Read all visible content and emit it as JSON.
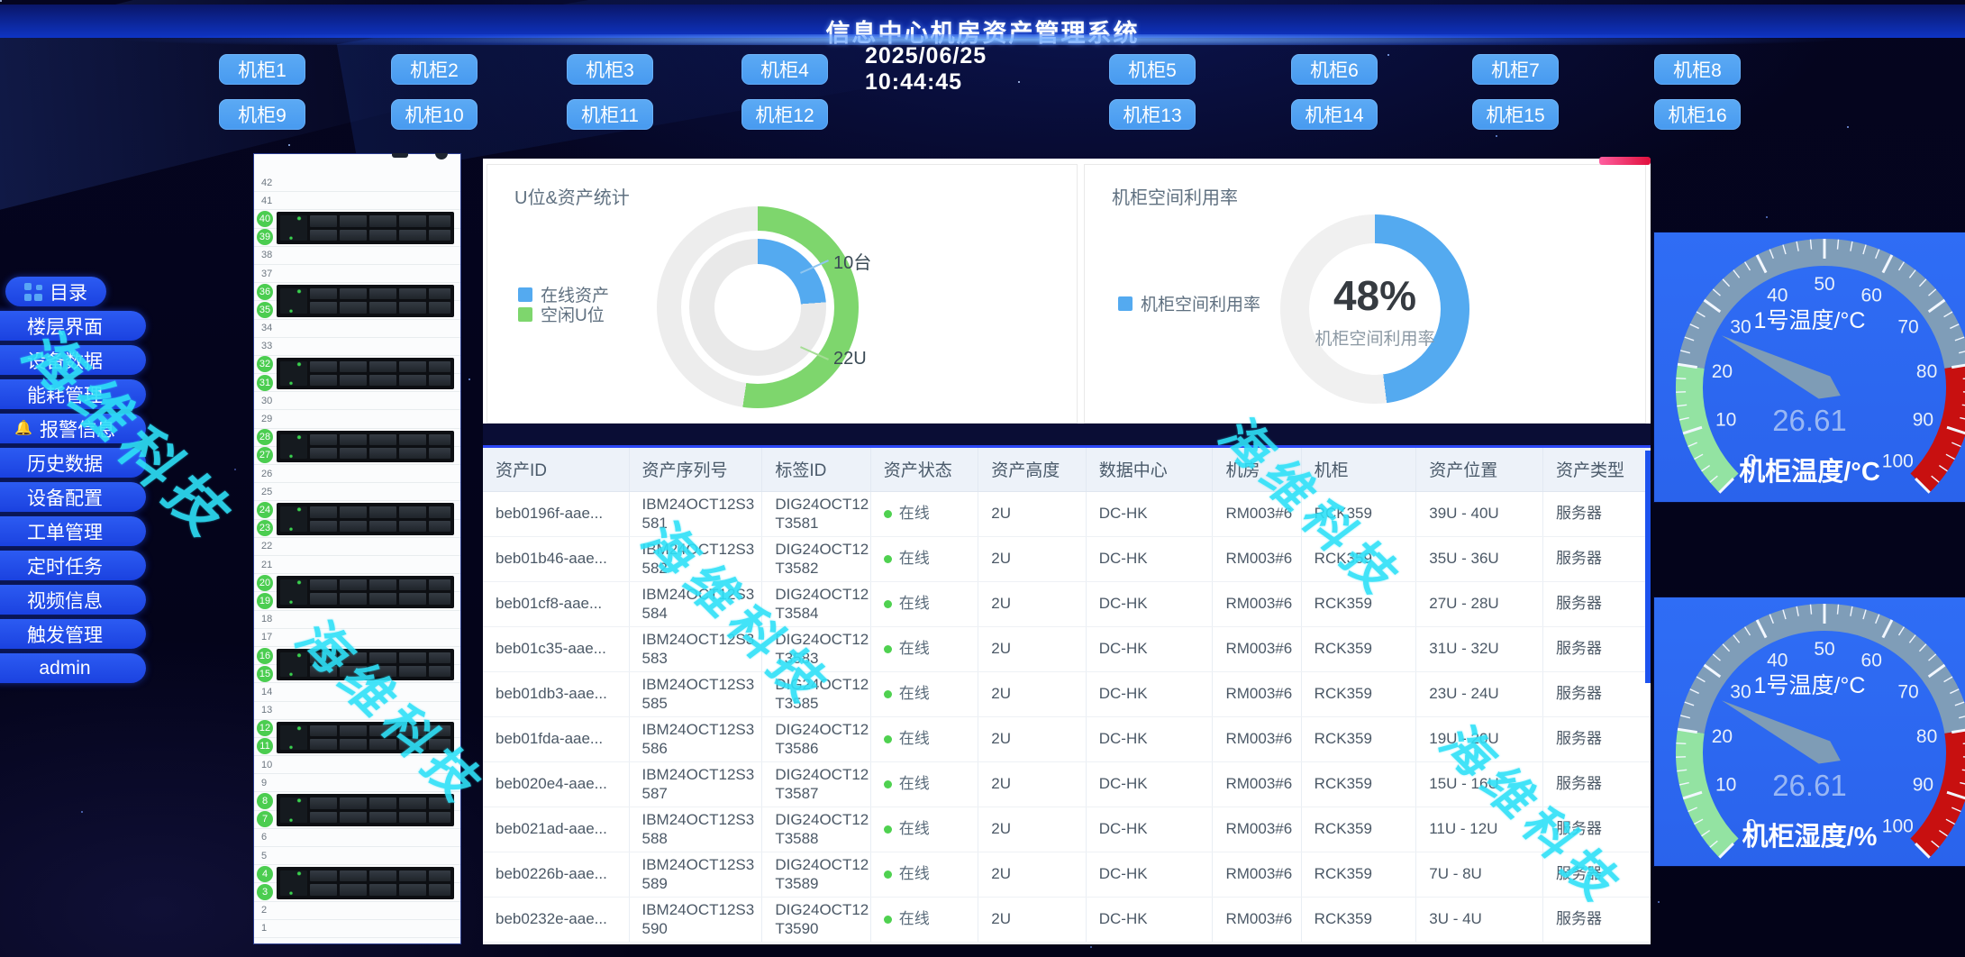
{
  "app": {
    "title": "信息中心机房资产管理系统",
    "datetime": "2025/06/25 10:44:45",
    "watermark": "海维科技"
  },
  "cabinets": {
    "row1": [
      "机柜1",
      "机柜2",
      "机柜3",
      "机柜4",
      "机柜5",
      "机柜6",
      "机柜7",
      "机柜8"
    ],
    "row2": [
      "机柜9",
      "机柜10",
      "机柜11",
      "机柜12",
      "机柜13",
      "机柜14",
      "机柜15",
      "机柜16"
    ]
  },
  "sidebar": {
    "items": [
      {
        "label": "目录",
        "icon": "grid"
      },
      {
        "label": "楼层界面"
      },
      {
        "label": "设备数据"
      },
      {
        "label": "能耗管理"
      },
      {
        "label": "报警信息",
        "icon": "bell"
      },
      {
        "label": "历史数据"
      },
      {
        "label": "设备配置"
      },
      {
        "label": "工单管理"
      },
      {
        "label": "定时任务"
      },
      {
        "label": "视频信息"
      },
      {
        "label": "触发管理"
      },
      {
        "label": "admin"
      }
    ]
  },
  "rack": {
    "total_u": 42,
    "server_top_positions": [
      40,
      36,
      32,
      28,
      24,
      20,
      16,
      12,
      8,
      4
    ],
    "occupied_color": "#4bcd50"
  },
  "chart_data": [
    {
      "type": "pie",
      "variant": "double-donut",
      "title": "U位&资产统计",
      "legend": [
        {
          "label": "在线资产",
          "color": "#54aaf0"
        },
        {
          "label": "空闲U位",
          "color": "#7ed66d"
        }
      ],
      "series": [
        {
          "name": "空闲U位",
          "ring": "outer",
          "color": "#7ed66d",
          "rest_color": "#ededed",
          "value": 22,
          "total": 42,
          "label": "22U"
        },
        {
          "name": "在线资产",
          "ring": "inner",
          "color": "#54aaf0",
          "rest_color": "#e9e9e9",
          "value": 10,
          "total": 42,
          "label": "10台"
        }
      ]
    },
    {
      "type": "pie",
      "variant": "donut",
      "title": "机柜空间利用率",
      "legend": [
        {
          "label": "机柜空间利用率",
          "color": "#54aaf0"
        }
      ],
      "value_pct": 48,
      "center_label": "48%",
      "center_sublabel": "机柜空间利用率",
      "color": "#54aaf0",
      "rest_color": "#f0f0f0"
    },
    {
      "type": "gauge",
      "title": "1号温度/°C",
      "value": 26.61,
      "min": 0,
      "max": 100,
      "bottom_label": "机柜温度/°C",
      "zones": [
        {
          "from": 0,
          "to": 20,
          "color": "#93e3a2"
        },
        {
          "from": 20,
          "to": 80,
          "color": "#7f9db8"
        },
        {
          "from": 80,
          "to": 100,
          "color": "#c81010"
        }
      ]
    },
    {
      "type": "gauge",
      "title": "1号温度/°C",
      "value": 26.61,
      "min": 0,
      "max": 100,
      "bottom_label": "机柜湿度/%",
      "zones": [
        {
          "from": 0,
          "to": 20,
          "color": "#93e3a2"
        },
        {
          "from": 20,
          "to": 80,
          "color": "#7f9db8"
        },
        {
          "from": 80,
          "to": 100,
          "color": "#c81010"
        }
      ]
    }
  ],
  "table": {
    "columns": [
      "资产ID",
      "资产序列号",
      "标签ID",
      "资产状态",
      "资产高度",
      "数据中心",
      "机房",
      "机柜",
      "资产位置",
      "资产类型"
    ],
    "rows": [
      [
        "beb0196f-aae...",
        "IBM24OCT12S3581",
        "DIG24OCT12T3581",
        "在线",
        "2U",
        "DC-HK",
        "RM003#6",
        "RCK359",
        "39U - 40U",
        "服务器"
      ],
      [
        "beb01b46-aae...",
        "IBM24OCT12S3582",
        "DIG24OCT12T3582",
        "在线",
        "2U",
        "DC-HK",
        "RM003#6",
        "RCK359",
        "35U - 36U",
        "服务器"
      ],
      [
        "beb01cf8-aae...",
        "IBM24OCT12S3584",
        "DIG24OCT12T3584",
        "在线",
        "2U",
        "DC-HK",
        "RM003#6",
        "RCK359",
        "27U - 28U",
        "服务器"
      ],
      [
        "beb01c35-aae...",
        "IBM24OCT12S3583",
        "DIG24OCT12T3583",
        "在线",
        "2U",
        "DC-HK",
        "RM003#6",
        "RCK359",
        "31U - 32U",
        "服务器"
      ],
      [
        "beb01db3-aae...",
        "IBM24OCT12S3585",
        "DIG24OCT12T3585",
        "在线",
        "2U",
        "DC-HK",
        "RM003#6",
        "RCK359",
        "23U - 24U",
        "服务器"
      ],
      [
        "beb01fda-aae...",
        "IBM24OCT12S3586",
        "DIG24OCT12T3586",
        "在线",
        "2U",
        "DC-HK",
        "RM003#6",
        "RCK359",
        "19U - 20U",
        "服务器"
      ],
      [
        "beb020e4-aae...",
        "IBM24OCT12S3587",
        "DIG24OCT12T3587",
        "在线",
        "2U",
        "DC-HK",
        "RM003#6",
        "RCK359",
        "15U - 16U",
        "服务器"
      ],
      [
        "beb021ad-aae...",
        "IBM24OCT12S3588",
        "DIG24OCT12T3588",
        "在线",
        "2U",
        "DC-HK",
        "RM003#6",
        "RCK359",
        "11U - 12U",
        "服务器"
      ],
      [
        "beb0226b-aae...",
        "IBM24OCT12S3589",
        "DIG24OCT12T3589",
        "在线",
        "2U",
        "DC-HK",
        "RM003#6",
        "RCK359",
        "7U - 8U",
        "服务器"
      ],
      [
        "beb0232e-aae...",
        "IBM24OCT12S3590",
        "DIG24OCT12T3590",
        "在线",
        "2U",
        "DC-HK",
        "RM003#6",
        "RCK359",
        "3U - 4U",
        "服务器"
      ]
    ],
    "status_online_color": "#4fd150"
  }
}
